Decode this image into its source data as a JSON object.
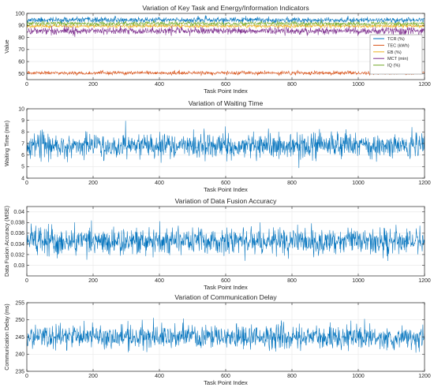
{
  "colors": {
    "background": "#ffffff",
    "axis": "#262626",
    "grid": "#e6e6e6",
    "series_blue": "#0072BD",
    "series_orange": "#D95319",
    "series_yellow": "#EDB120",
    "series_purple": "#7E2F8E",
    "series_green": "#77AC30"
  },
  "chart_data": [
    {
      "type": "line",
      "title": "Variation of Key Task and Energy/Information Indicators",
      "xlabel": "Task Point Index",
      "ylabel": "Value",
      "xlim": [
        0,
        1200
      ],
      "ylim": [
        45,
        100
      ],
      "xticks": [
        0,
        200,
        400,
        600,
        800,
        1000,
        1200
      ],
      "yticks": [
        50,
        60,
        70,
        80,
        90,
        100
      ],
      "grid": true,
      "legend_position": "right",
      "series": [
        {
          "name": "TCR (%)",
          "color": "#0072BD",
          "mean": 94.5,
          "spread": 1.5,
          "seed": 11
        },
        {
          "name": "TEC (kWh)",
          "color": "#D95319",
          "mean": 50.5,
          "spread": 1.0,
          "seed": 23
        },
        {
          "name": "EB (%)",
          "color": "#EDB120",
          "mean": 89.5,
          "spread": 1.0,
          "seed": 37
        },
        {
          "name": "MCT (min)",
          "color": "#7E2F8E",
          "mean": 85.5,
          "spread": 2.0,
          "seed": 41
        },
        {
          "name": "IQ (%)",
          "color": "#77AC30",
          "mean": 91.5,
          "spread": 1.2,
          "seed": 53
        }
      ]
    },
    {
      "type": "line",
      "title": "Variation of Waiting Time",
      "xlabel": "Task Point Index",
      "ylabel": "Waiting Time (min)",
      "xlim": [
        0,
        1200
      ],
      "ylim": [
        4,
        10
      ],
      "xticks": [
        0,
        200,
        400,
        600,
        800,
        1000,
        1200
      ],
      "yticks": [
        4,
        5,
        6,
        7,
        8,
        9,
        10
      ],
      "grid": true,
      "series": [
        {
          "color": "#0072BD",
          "mean": 6.8,
          "spread": 0.7,
          "min": 3.8,
          "max": 9.3,
          "seed": 67
        }
      ]
    },
    {
      "type": "line",
      "title": "Variation of Data Fusion Accuracy",
      "xlabel": "Task Point Index",
      "ylabel": "Data Fusion Accuracy (MSE)",
      "xlim": [
        0,
        1200
      ],
      "ylim": [
        0.028,
        0.041
      ],
      "xticks": [
        0,
        200,
        400,
        600,
        800,
        1000,
        1200
      ],
      "yticks": [
        0.03,
        0.032,
        0.034,
        0.036,
        0.038,
        0.04
      ],
      "grid": true,
      "series": [
        {
          "color": "#0072BD",
          "mean": 0.0345,
          "spread": 0.0017,
          "min": 0.0283,
          "max": 0.0408,
          "seed": 79
        }
      ]
    },
    {
      "type": "line",
      "title": "Variation of Communication Delay",
      "xlabel": "Task Point Index",
      "ylabel": "Communication Delay (ms)",
      "xlim": [
        0,
        1200
      ],
      "ylim": [
        235,
        255
      ],
      "xticks": [
        0,
        200,
        400,
        600,
        800,
        1000,
        1200
      ],
      "yticks": [
        235,
        240,
        245,
        250,
        255
      ],
      "grid": true,
      "series": [
        {
          "color": "#0072BD",
          "mean": 245,
          "spread": 2.3,
          "min": 236.5,
          "max": 254.2,
          "seed": 97
        }
      ]
    }
  ]
}
